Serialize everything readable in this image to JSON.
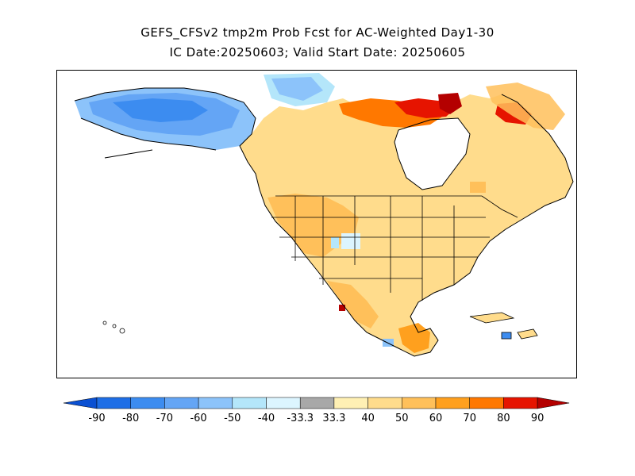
{
  "header": {
    "title_line1": "GEFS_CFSv2 tmp2m Prob Fcst for AC-Weighted Day1-30",
    "title_line2": "IC Date:20250603; Valid Start Date: 20250605"
  },
  "map": {
    "region": "North America",
    "field": "tmp2m probability",
    "features": [
      "coastlines",
      "country-borders",
      "state-borders",
      "grid-cells"
    ]
  },
  "colorbar": {
    "labels": [
      "-90",
      "-80",
      "-70",
      "-60",
      "-50",
      "-40",
      "-33.3",
      "33.3",
      "40",
      "50",
      "60",
      "70",
      "80",
      "90"
    ],
    "colors": [
      "#1e6ee6",
      "#3c8cf0",
      "#64a5f5",
      "#8cc3fa",
      "#b4e6fa",
      "#dcf5ff",
      "#a8a8a8",
      "#fff0b4",
      "#ffdc8c",
      "#ffc05a",
      "#ffa01e",
      "#ff7800",
      "#e61400",
      "#b40000"
    ]
  }
}
